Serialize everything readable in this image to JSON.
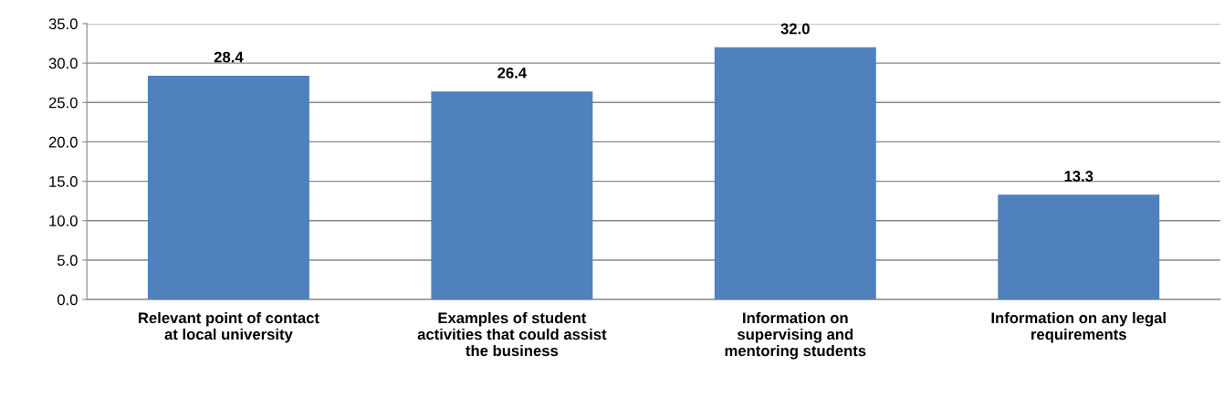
{
  "chart_data": {
    "type": "bar",
    "categories": [
      "Relevant point of contact\nat local university",
      "Examples of student\nactivities that could assist\nthe business",
      "Information on\nsupervising and\nmentoring students",
      "Information on any legal\nrequirements"
    ],
    "values": [
      28.4,
      26.4,
      32.0,
      13.3
    ],
    "value_labels": [
      "28.4",
      "26.4",
      "32.0",
      "13.3"
    ],
    "color": "#4f81bd",
    "ylim": [
      0,
      35
    ],
    "yticks": [
      {
        "value": 0,
        "label": "0.0"
      },
      {
        "value": 5,
        "label": "5.0"
      },
      {
        "value": 10,
        "label": "10.0"
      },
      {
        "value": 15,
        "label": "15.0"
      },
      {
        "value": 20,
        "label": "20.0"
      },
      {
        "value": 25,
        "label": "25.0"
      },
      {
        "value": 30,
        "label": "30.0"
      },
      {
        "value": 35,
        "label": "35.0"
      }
    ],
    "grid": "y",
    "legend": false
  }
}
